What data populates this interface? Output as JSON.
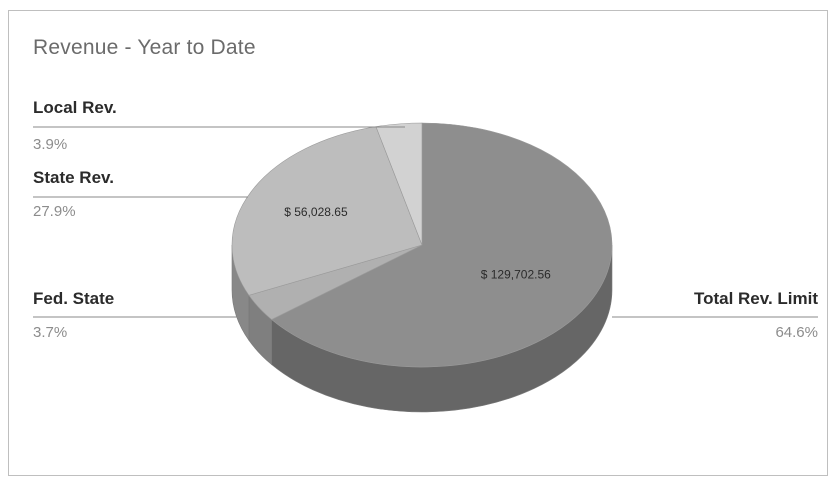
{
  "chart_data": {
    "type": "pie",
    "title": "Revenue - Year to Date",
    "slices": [
      {
        "name": "Total Rev. Limit",
        "percent": 64.6,
        "percent_label": "64.6%",
        "value_label": "$ 129,702.56",
        "color": "#8e8e8e"
      },
      {
        "name": "Fed. State",
        "percent": 3.7,
        "percent_label": "3.7%",
        "value_label": "",
        "color": "#b0b0b0"
      },
      {
        "name": "State Rev.",
        "percent": 27.9,
        "percent_label": "27.9%",
        "value_label": "$ 56,028.65",
        "color": "#bdbdbd"
      },
      {
        "name": "Local Rev.",
        "percent": 3.9,
        "percent_label": "3.9%",
        "value_label": "",
        "color": "#d2d2d2"
      }
    ],
    "legend": "none",
    "grid": false
  }
}
